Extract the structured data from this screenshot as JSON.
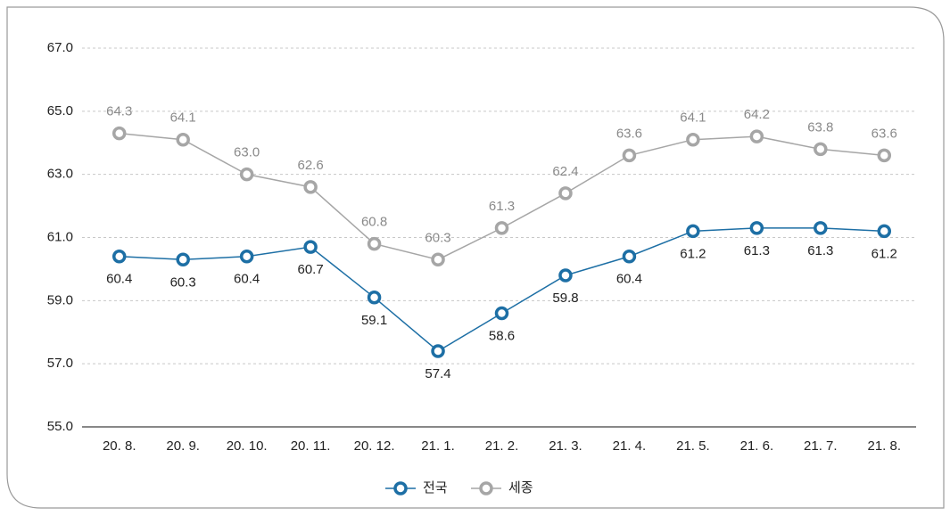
{
  "chart_data": {
    "type": "line",
    "categories": [
      "20. 8.",
      "20. 9.",
      "20. 10.",
      "20. 11.",
      "20. 12.",
      "21. 1.",
      "21. 2.",
      "21. 3.",
      "21. 4.",
      "21. 5.",
      "21. 6.",
      "21. 7.",
      "21. 8."
    ],
    "series": [
      {
        "name": "전국",
        "color": "#1d6fa5",
        "values": [
          60.4,
          60.3,
          60.4,
          60.7,
          59.1,
          57.4,
          58.6,
          59.8,
          60.4,
          61.2,
          61.3,
          61.3,
          61.2
        ]
      },
      {
        "name": "세종",
        "color": "#a6a6a6",
        "values": [
          64.3,
          64.1,
          63.0,
          62.6,
          60.8,
          60.3,
          61.3,
          62.4,
          63.6,
          64.1,
          64.2,
          63.8,
          63.6
        ],
        "value_labels": [
          "64.3",
          "64.1",
          "63.0",
          "62.6",
          "60.8",
          "60.3",
          "61.3",
          "62.4",
          "63.6",
          "64.1",
          "64.2",
          "63.8",
          "63.6"
        ]
      }
    ],
    "ylim": [
      55,
      67
    ],
    "yticks": [
      {
        "value": 55,
        "label": "55.0"
      },
      {
        "value": 57,
        "label": "57.0"
      },
      {
        "value": 59,
        "label": "59.0"
      },
      {
        "value": 61,
        "label": "61.0"
      },
      {
        "value": 63,
        "label": "63.0"
      },
      {
        "value": 65,
        "label": "65.0"
      },
      {
        "value": 67,
        "label": "67.0"
      }
    ],
    "grid": true,
    "legend": "bottom"
  }
}
